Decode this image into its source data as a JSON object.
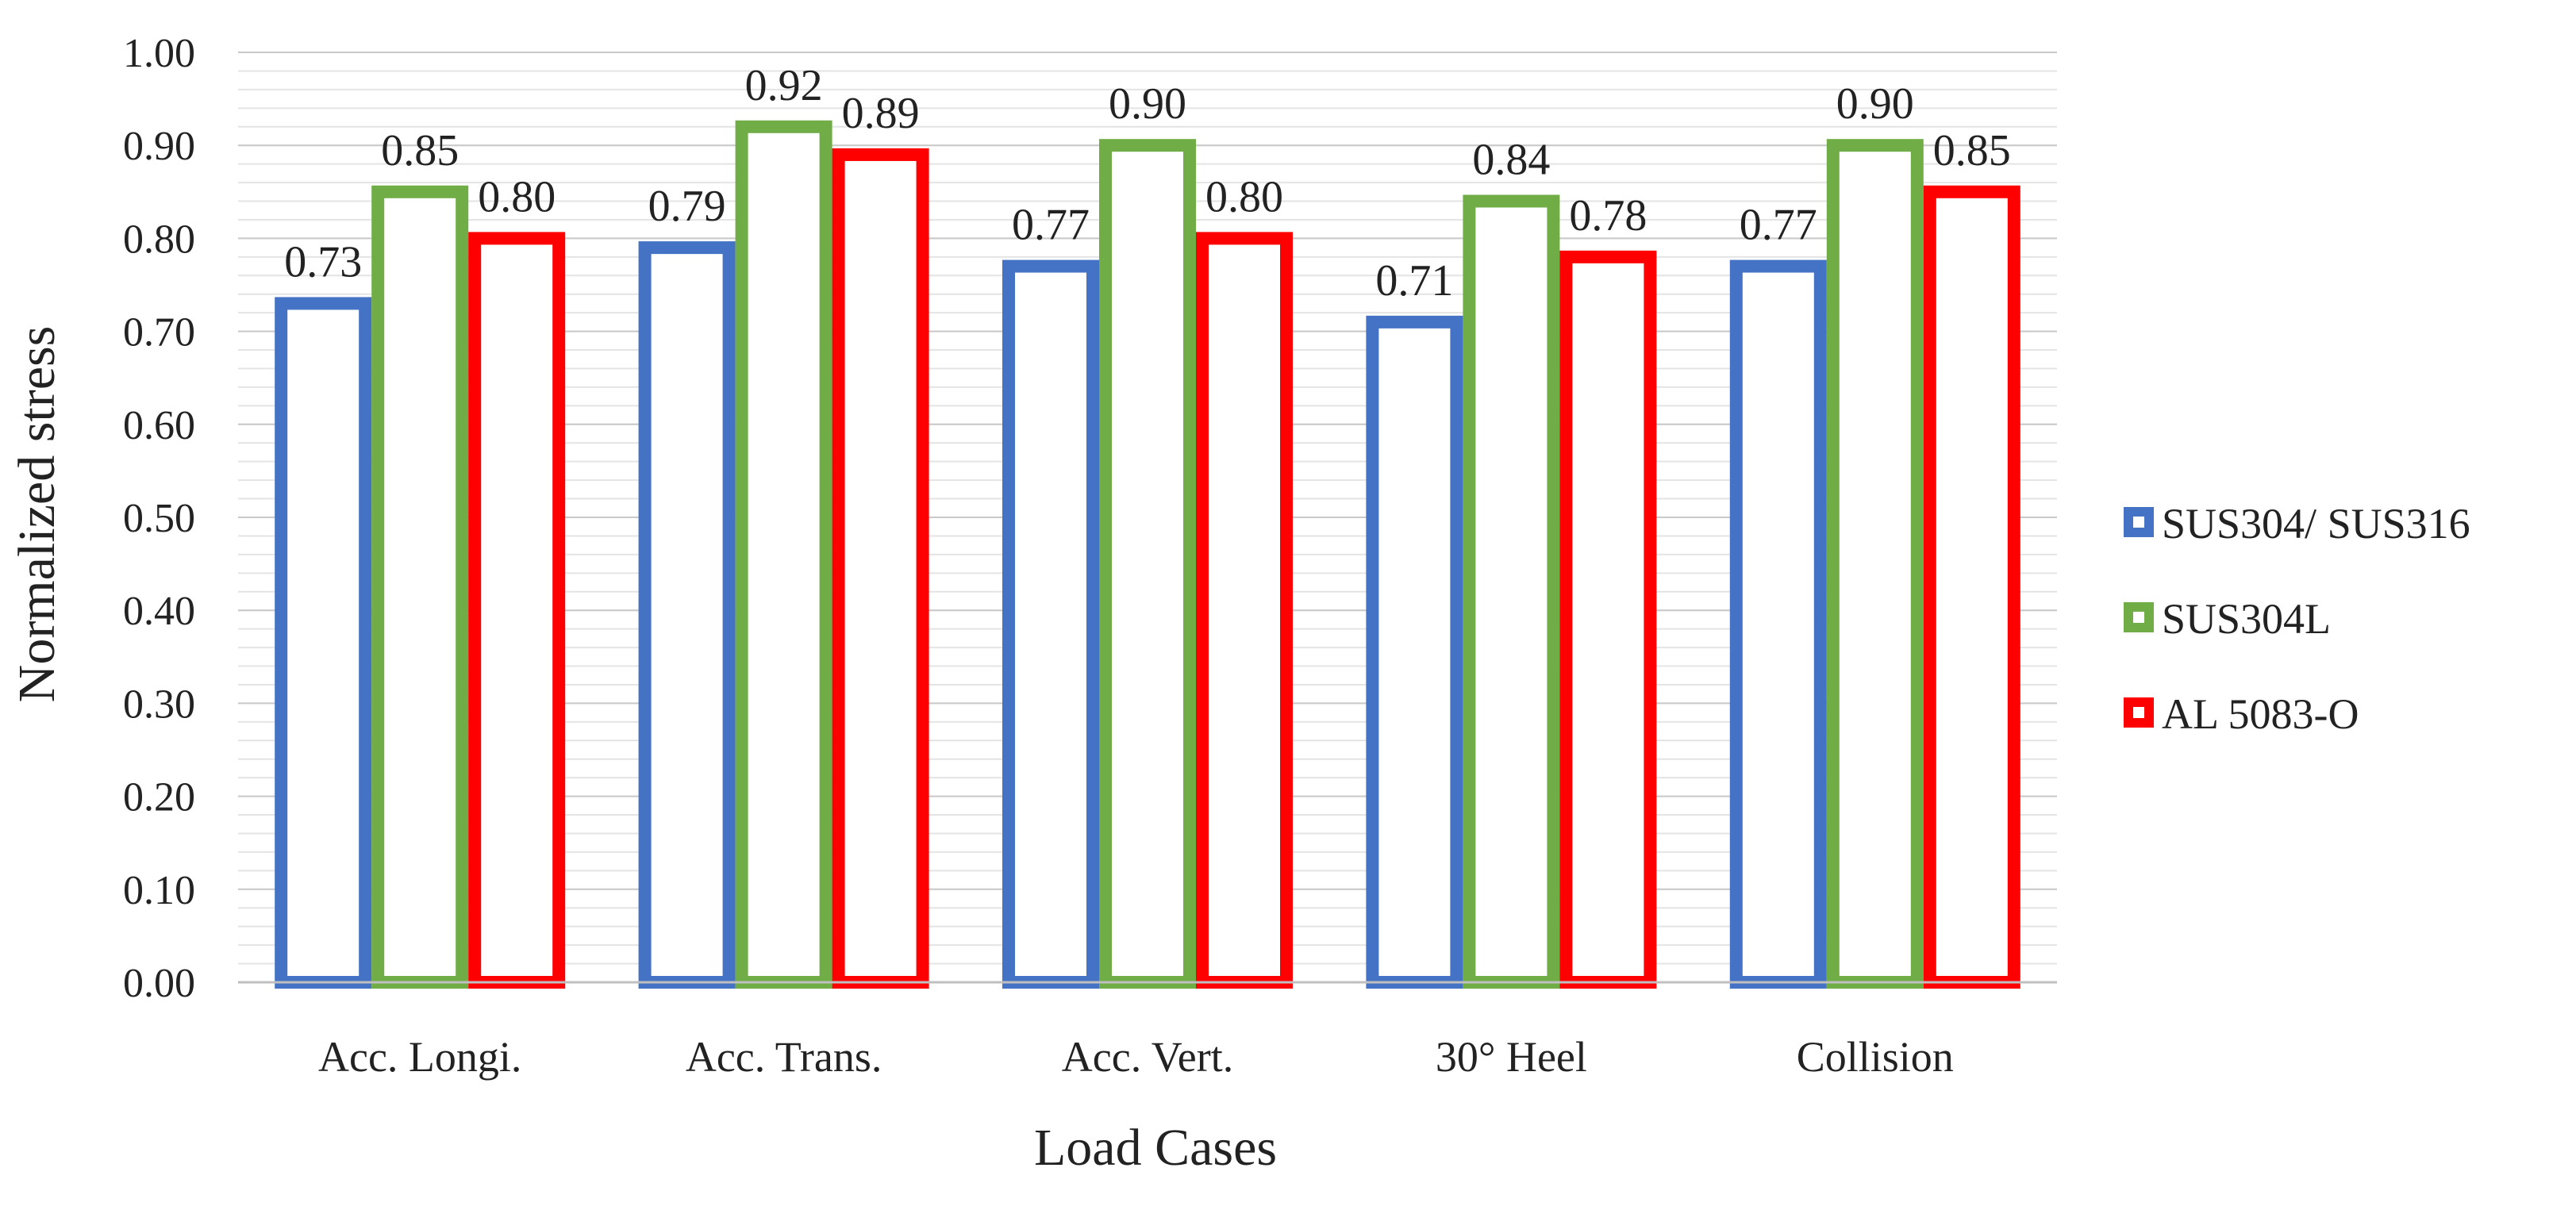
{
  "chart_data": {
    "type": "bar",
    "title": "",
    "xlabel": "Load Cases",
    "ylabel": "Normalized stress",
    "ylim": [
      0,
      1
    ],
    "ytick_step": 0.1,
    "minor_grid_step": 0.02,
    "categories": [
      "Acc. Longi.",
      "Acc. Trans.",
      "Acc. Vert.",
      "30° Heel",
      "Collision"
    ],
    "series": [
      {
        "name": "SUS304/ SUS316",
        "color": "#4472C4",
        "values": [
          0.73,
          0.79,
          0.77,
          0.71,
          0.77
        ],
        "labels": [
          "0.73",
          "0.79",
          "0.77",
          "0.71",
          "0.77"
        ]
      },
      {
        "name": "SUS304L",
        "color": "#70AD47",
        "values": [
          0.85,
          0.92,
          0.9,
          0.84,
          0.9
        ],
        "labels": [
          "0.85",
          "0.92",
          "0.90",
          "0.84",
          "0.90"
        ]
      },
      {
        "name": "AL 5083-O",
        "color": "#FF0000",
        "values": [
          0.8,
          0.89,
          0.8,
          0.78,
          0.85
        ],
        "labels": [
          "0.80",
          "0.89",
          "0.80",
          "0.78",
          "0.85"
        ]
      }
    ],
    "ytick_labels": [
      "0.00",
      "0.10",
      "0.20",
      "0.30",
      "0.40",
      "0.50",
      "0.60",
      "0.70",
      "0.80",
      "0.90",
      "1.00"
    ],
    "legend_position": "right"
  }
}
